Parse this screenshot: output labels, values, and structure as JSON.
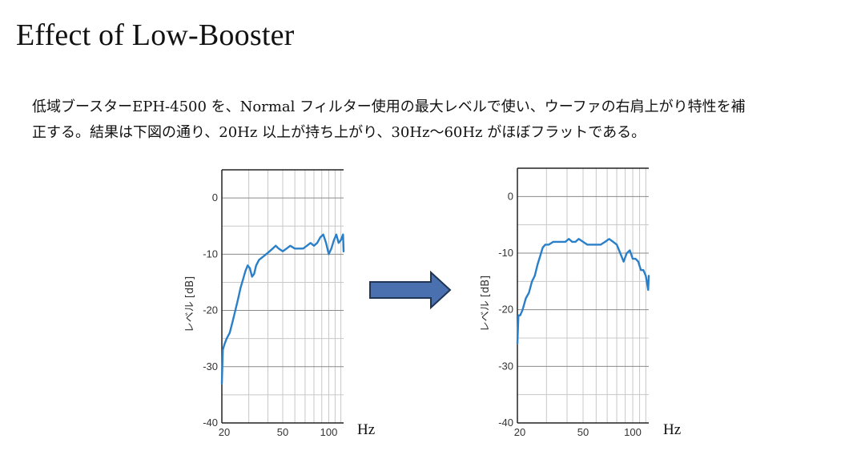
{
  "page": {
    "title": "Effect of Low-Booster",
    "description_lines": [
      "低域ブースターEPH-4500 を、Normal フィルター使用の最大レベルで使い、ウーファの右肩上がり特性を補",
      "正する。結果は下図の通り、20Hz 以上が持ち上がり、30Hz〜60Hz がほぼフラットである。"
    ]
  },
  "colors": {
    "line": "#2a7fc9",
    "arrow_fill": "#4a70b0",
    "arrow_stroke": "#1f3555",
    "grid": "#c8c8c8"
  },
  "chart_data": [
    {
      "type": "line",
      "title": "",
      "xlabel": "Hz",
      "ylabel": "レベル [dB]",
      "xscale": "log",
      "xlim": [
        20,
        125
      ],
      "ylim": [
        -40,
        5
      ],
      "xticks": [
        20,
        50,
        100
      ],
      "yticks": [
        0,
        -10,
        -20,
        -30,
        -40
      ],
      "grid": true,
      "series": [
        {
          "x": [
            20,
            20.3,
            20.8,
            21.5,
            22.5,
            23.5,
            24.5,
            25.5,
            26.5,
            27.5,
            28.5,
            29.5,
            30.5,
            31.5,
            32.5,
            33.5,
            35,
            37,
            39,
            41,
            43,
            45,
            47,
            50,
            53,
            56,
            60,
            64,
            68,
            72,
            76,
            80,
            84,
            88,
            92,
            96,
            100,
            104,
            108,
            112,
            116,
            120,
            124,
            125
          ],
          "y": [
            -33,
            -27,
            -26,
            -25,
            -24,
            -22,
            -20,
            -18,
            -16,
            -14.5,
            -13,
            -12,
            -12.5,
            -14,
            -13.5,
            -12,
            -11,
            -10.5,
            -10,
            -9.5,
            -9,
            -8.5,
            -9,
            -9.5,
            -9,
            -8.5,
            -9,
            -9,
            -9,
            -8.5,
            -8,
            -8.5,
            -8,
            -7,
            -6.5,
            -8,
            -10,
            -9,
            -7.5,
            -6.5,
            -8,
            -7.5,
            -6.5,
            -9.5
          ]
        }
      ]
    },
    {
      "type": "line",
      "title": "",
      "xlabel": "Hz",
      "ylabel": "レベル [dB]",
      "xscale": "log",
      "xlim": [
        20,
        125
      ],
      "ylim": [
        -40,
        5
      ],
      "xticks": [
        20,
        50,
        100
      ],
      "yticks": [
        0,
        -10,
        -20,
        -30,
        -40
      ],
      "grid": true,
      "series": [
        {
          "x": [
            20,
            20.3,
            20.8,
            21.5,
            22.5,
            23.5,
            24.5,
            25.5,
            26.5,
            27.5,
            28.5,
            29.5,
            31,
            33,
            35,
            37,
            39,
            41,
            43,
            45,
            47,
            50,
            53,
            56,
            60,
            64,
            68,
            72,
            76,
            80,
            84,
            88,
            92,
            96,
            100,
            104,
            108,
            112,
            116,
            120,
            124,
            125
          ],
          "y": [
            -26,
            -21,
            -21,
            -20,
            -18,
            -17,
            -15,
            -14,
            -12,
            -10.5,
            -9,
            -8.5,
            -8.5,
            -8,
            -8,
            -8,
            -8,
            -7.5,
            -8,
            -8,
            -7.5,
            -8,
            -8.5,
            -8.5,
            -8.5,
            -8.5,
            -8,
            -7.5,
            -8,
            -8.5,
            -10,
            -11.5,
            -10,
            -9.5,
            -11,
            -11,
            -11.5,
            -13,
            -13,
            -14,
            -16.5,
            -14
          ]
        }
      ]
    }
  ]
}
